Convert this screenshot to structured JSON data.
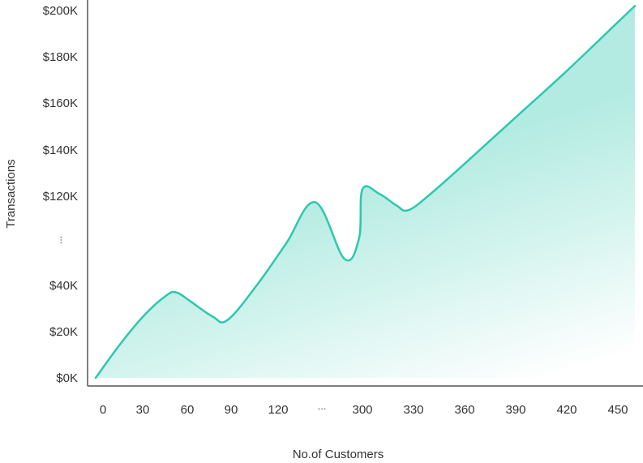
{
  "chart_data": {
    "type": "area",
    "title": "",
    "xlabel": "No.of Customers",
    "ylabel": "Transactions",
    "x_tick_labels": [
      "0",
      "30",
      "60",
      "90",
      "120",
      "300",
      "330",
      "360",
      "390",
      "420",
      "450"
    ],
    "x_break_symbol": "...",
    "y_tick_labels": [
      "$0K",
      "$20K",
      "$40K",
      "$120K",
      "$140K",
      "$160K",
      "$180K",
      "$200K"
    ],
    "y_break_symbol": "...",
    "grid": false,
    "series": [
      {
        "color": "#2ec7b0",
        "points": [
          {
            "x": 0,
            "y": 0
          },
          {
            "x": 16,
            "y": 14
          },
          {
            "x": 33,
            "y": 27
          },
          {
            "x": 48,
            "y": 35.5
          },
          {
            "x": 55,
            "y": 37
          },
          {
            "x": 65,
            "y": 33
          },
          {
            "x": 80,
            "y": 26.5
          },
          {
            "x": 90,
            "y": 25
          },
          {
            "x": 110,
            "y": 40
          },
          {
            "x": 130,
            "y": 58
          },
          {
            "x": 150,
            "y": 76
          },
          {
            "x": 170,
            "y": 93
          },
          {
            "x": 180,
            "y": 102
          },
          {
            "x": 300,
            "y": 123
          },
          {
            "x": 310,
            "y": 121
          },
          {
            "x": 320,
            "y": 116
          },
          {
            "x": 327,
            "y": 114
          },
          {
            "x": 340,
            "y": 121
          },
          {
            "x": 360,
            "y": 134
          },
          {
            "x": 390,
            "y": 154
          },
          {
            "x": 420,
            "y": 174
          },
          {
            "x": 450,
            "y": 195
          },
          {
            "x": 460,
            "y": 202
          }
        ]
      }
    ]
  }
}
